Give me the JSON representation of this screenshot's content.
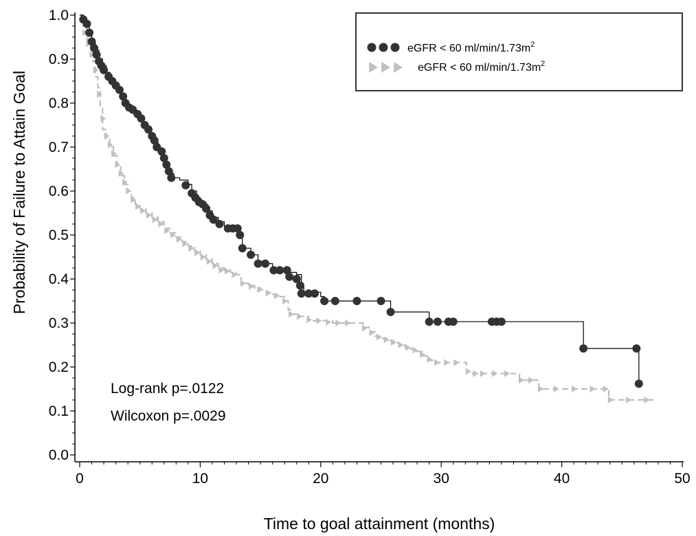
{
  "chart_data": {
    "type": "line",
    "title": "",
    "xlabel": "Time to goal attainment (months)",
    "ylabel": "Probability of  Failure to Attain Goal",
    "xlim": [
      0,
      50
    ],
    "ylim": [
      0,
      1.0
    ],
    "x_ticks": [
      "0",
      "10",
      "20",
      "30",
      "40",
      "50"
    ],
    "y_ticks": [
      "0.0",
      "0.1",
      "0.2",
      "0.3",
      "0.4",
      "0.5",
      "0.6",
      "0.7",
      "0.8",
      "0.9",
      "1.0"
    ],
    "grid": false,
    "legend_position": "top-right",
    "annotations": [
      "Log-rank p=.0122",
      "Wilcoxon p=.0029"
    ],
    "series": [
      {
        "name": "eGFR < 60 ml/min/1.73m",
        "superscript": "2",
        "color": "#333333",
        "marker": "circle",
        "line_style": "solid",
        "points": [
          [
            0,
            1.0
          ],
          [
            0.3,
            0.99
          ],
          [
            0.6,
            0.98
          ],
          [
            0.8,
            0.96
          ],
          [
            1.0,
            0.94
          ],
          [
            1.3,
            0.92
          ],
          [
            1.6,
            0.9
          ],
          [
            1.9,
            0.885
          ],
          [
            2.2,
            0.87
          ],
          [
            2.5,
            0.855
          ],
          [
            2.8,
            0.845
          ],
          [
            3.1,
            0.83
          ],
          [
            3.4,
            0.815
          ],
          [
            3.7,
            0.8
          ],
          [
            4.0,
            0.79
          ],
          [
            4.3,
            0.78
          ],
          [
            4.7,
            0.77
          ],
          [
            5.0,
            0.76
          ],
          [
            5.3,
            0.75
          ],
          [
            5.6,
            0.735
          ],
          [
            5.9,
            0.725
          ],
          [
            6.2,
            0.71
          ],
          [
            6.5,
            0.695
          ],
          [
            6.8,
            0.68
          ],
          [
            7.0,
            0.665
          ],
          [
            7.3,
            0.65
          ],
          [
            7.5,
            0.64
          ],
          [
            7.8,
            0.63
          ],
          [
            8.3,
            0.625
          ],
          [
            9.0,
            0.615
          ],
          [
            9.3,
            0.6
          ],
          [
            9.7,
            0.585
          ],
          [
            10.0,
            0.575
          ],
          [
            10.3,
            0.57
          ],
          [
            10.6,
            0.555
          ],
          [
            11.0,
            0.54
          ],
          [
            11.5,
            0.53
          ],
          [
            12.0,
            0.52
          ],
          [
            12.8,
            0.515
          ],
          [
            13.3,
            0.5
          ],
          [
            13.5,
            0.47
          ],
          [
            14.2,
            0.455
          ],
          [
            14.8,
            0.44
          ],
          [
            15.4,
            0.435
          ],
          [
            16.0,
            0.425
          ],
          [
            16.6,
            0.42
          ],
          [
            17.2,
            0.415
          ],
          [
            18.0,
            0.41
          ],
          [
            18.4,
            0.385
          ],
          [
            18.6,
            0.37
          ],
          [
            19.3,
            0.37
          ],
          [
            20.0,
            0.36
          ],
          [
            20.3,
            0.35
          ],
          [
            21.2,
            0.35
          ],
          [
            22.0,
            0.35
          ],
          [
            23.0,
            0.35
          ],
          [
            25.0,
            0.35
          ],
          [
            25.8,
            0.325
          ],
          [
            28.0,
            0.325
          ],
          [
            29.0,
            0.303
          ],
          [
            30.0,
            0.303
          ],
          [
            31.0,
            0.303
          ],
          [
            34.2,
            0.303
          ],
          [
            35.0,
            0.303
          ],
          [
            41.8,
            0.303
          ],
          [
            41.8,
            0.242
          ],
          [
            46.2,
            0.242
          ],
          [
            46.4,
            0.162
          ]
        ],
        "censor_points": [
          [
            0.3,
            0.99
          ],
          [
            0.6,
            0.98
          ],
          [
            0.8,
            0.96
          ],
          [
            1.0,
            0.94
          ],
          [
            1.2,
            0.925
          ],
          [
            1.4,
            0.91
          ],
          [
            1.6,
            0.895
          ],
          [
            1.8,
            0.885
          ],
          [
            2.0,
            0.875
          ],
          [
            2.4,
            0.86
          ],
          [
            2.7,
            0.85
          ],
          [
            3.0,
            0.84
          ],
          [
            3.3,
            0.83
          ],
          [
            3.6,
            0.815
          ],
          [
            3.8,
            0.8
          ],
          [
            4.1,
            0.79
          ],
          [
            4.4,
            0.785
          ],
          [
            4.8,
            0.775
          ],
          [
            5.1,
            0.765
          ],
          [
            5.4,
            0.75
          ],
          [
            5.7,
            0.74
          ],
          [
            6.0,
            0.725
          ],
          [
            6.2,
            0.715
          ],
          [
            6.4,
            0.7
          ],
          [
            6.8,
            0.69
          ],
          [
            7.0,
            0.675
          ],
          [
            7.2,
            0.66
          ],
          [
            7.4,
            0.645
          ],
          [
            7.6,
            0.63
          ],
          [
            8.8,
            0.613
          ],
          [
            9.3,
            0.595
          ],
          [
            9.6,
            0.585
          ],
          [
            9.9,
            0.575
          ],
          [
            10.2,
            0.57
          ],
          [
            10.5,
            0.56
          ],
          [
            10.8,
            0.545
          ],
          [
            11.1,
            0.535
          ],
          [
            11.6,
            0.525
          ],
          [
            12.3,
            0.515
          ],
          [
            12.7,
            0.515
          ],
          [
            13.1,
            0.515
          ],
          [
            13.3,
            0.5
          ],
          [
            13.5,
            0.47
          ],
          [
            14.2,
            0.455
          ],
          [
            14.8,
            0.435
          ],
          [
            15.4,
            0.435
          ],
          [
            16.1,
            0.42
          ],
          [
            16.6,
            0.42
          ],
          [
            17.2,
            0.42
          ],
          [
            17.4,
            0.405
          ],
          [
            18.0,
            0.4
          ],
          [
            18.3,
            0.385
          ],
          [
            18.4,
            0.367
          ],
          [
            19.0,
            0.367
          ],
          [
            19.5,
            0.367
          ],
          [
            20.3,
            0.35
          ],
          [
            21.2,
            0.35
          ],
          [
            23.0,
            0.35
          ],
          [
            25.0,
            0.35
          ],
          [
            25.8,
            0.325
          ],
          [
            29.0,
            0.303
          ],
          [
            29.7,
            0.303
          ],
          [
            30.6,
            0.303
          ],
          [
            31.0,
            0.303
          ],
          [
            34.2,
            0.303
          ],
          [
            34.6,
            0.303
          ],
          [
            35.0,
            0.303
          ],
          [
            41.8,
            0.242
          ],
          [
            46.2,
            0.242
          ],
          [
            46.4,
            0.162
          ]
        ]
      },
      {
        "name": "eGFR < 60 ml/min/1.73m",
        "superscript": "2",
        "color": "#c0c0c0",
        "marker": "triangle-right",
        "line_style": "dashed",
        "points": [
          [
            0,
            1.0
          ],
          [
            0.3,
            0.97
          ],
          [
            0.6,
            0.94
          ],
          [
            0.9,
            0.92
          ],
          [
            1.1,
            0.895
          ],
          [
            1.3,
            0.86
          ],
          [
            1.5,
            0.835
          ],
          [
            1.7,
            0.79
          ],
          [
            1.9,
            0.74
          ],
          [
            2.2,
            0.72
          ],
          [
            2.5,
            0.7
          ],
          [
            2.8,
            0.68
          ],
          [
            3.1,
            0.655
          ],
          [
            3.4,
            0.635
          ],
          [
            3.7,
            0.615
          ],
          [
            4.0,
            0.6
          ],
          [
            4.3,
            0.585
          ],
          [
            4.6,
            0.57
          ],
          [
            5.0,
            0.56
          ],
          [
            5.5,
            0.55
          ],
          [
            6.0,
            0.54
          ],
          [
            6.5,
            0.53
          ],
          [
            7.0,
            0.515
          ],
          [
            7.5,
            0.505
          ],
          [
            8.0,
            0.495
          ],
          [
            8.5,
            0.485
          ],
          [
            9.0,
            0.475
          ],
          [
            9.5,
            0.465
          ],
          [
            10.0,
            0.455
          ],
          [
            10.5,
            0.445
          ],
          [
            11.0,
            0.435
          ],
          [
            11.5,
            0.425
          ],
          [
            12.0,
            0.42
          ],
          [
            12.5,
            0.415
          ],
          [
            13.0,
            0.41
          ],
          [
            13.4,
            0.39
          ],
          [
            14.0,
            0.385
          ],
          [
            14.5,
            0.38
          ],
          [
            15.0,
            0.375
          ],
          [
            15.5,
            0.37
          ],
          [
            16.0,
            0.365
          ],
          [
            16.5,
            0.36
          ],
          [
            17.0,
            0.35
          ],
          [
            17.3,
            0.33
          ],
          [
            17.5,
            0.32
          ],
          [
            18.0,
            0.315
          ],
          [
            19.0,
            0.305
          ],
          [
            20.0,
            0.305
          ],
          [
            21.0,
            0.3
          ],
          [
            22.0,
            0.3
          ],
          [
            23.0,
            0.3
          ],
          [
            23.5,
            0.29
          ],
          [
            24.0,
            0.28
          ],
          [
            24.5,
            0.27
          ],
          [
            25.0,
            0.265
          ],
          [
            25.5,
            0.26
          ],
          [
            26.0,
            0.255
          ],
          [
            26.5,
            0.25
          ],
          [
            27.0,
            0.245
          ],
          [
            27.5,
            0.24
          ],
          [
            28.0,
            0.235
          ],
          [
            28.5,
            0.225
          ],
          [
            29.0,
            0.215
          ],
          [
            29.5,
            0.21
          ],
          [
            31.0,
            0.21
          ],
          [
            32.0,
            0.21
          ],
          [
            32.1,
            0.19
          ],
          [
            32.5,
            0.185
          ],
          [
            36.4,
            0.185
          ],
          [
            36.5,
            0.17
          ],
          [
            38.0,
            0.17
          ],
          [
            38.1,
            0.15
          ],
          [
            43.8,
            0.15
          ],
          [
            43.9,
            0.125
          ],
          [
            47.6,
            0.125
          ]
        ],
        "censor_points": [
          [
            0.4,
            0.96
          ],
          [
            0.7,
            0.935
          ],
          [
            1.0,
            0.91
          ],
          [
            1.3,
            0.875
          ],
          [
            1.6,
            0.82
          ],
          [
            1.9,
            0.765
          ],
          [
            2.2,
            0.725
          ],
          [
            2.5,
            0.705
          ],
          [
            2.8,
            0.685
          ],
          [
            3.1,
            0.66
          ],
          [
            3.4,
            0.64
          ],
          [
            3.7,
            0.62
          ],
          [
            4.0,
            0.6
          ],
          [
            4.4,
            0.58
          ],
          [
            4.8,
            0.565
          ],
          [
            5.2,
            0.555
          ],
          [
            5.7,
            0.545
          ],
          [
            6.2,
            0.535
          ],
          [
            6.7,
            0.525
          ],
          [
            7.2,
            0.51
          ],
          [
            7.7,
            0.5
          ],
          [
            8.2,
            0.49
          ],
          [
            8.7,
            0.48
          ],
          [
            9.2,
            0.47
          ],
          [
            9.7,
            0.46
          ],
          [
            10.2,
            0.45
          ],
          [
            10.7,
            0.44
          ],
          [
            11.2,
            0.43
          ],
          [
            11.7,
            0.42
          ],
          [
            12.2,
            0.418
          ],
          [
            12.8,
            0.41
          ],
          [
            13.5,
            0.39
          ],
          [
            14.2,
            0.383
          ],
          [
            14.9,
            0.376
          ],
          [
            15.6,
            0.368
          ],
          [
            16.3,
            0.362
          ],
          [
            17.0,
            0.35
          ],
          [
            17.5,
            0.32
          ],
          [
            18.2,
            0.315
          ],
          [
            19.0,
            0.307
          ],
          [
            19.8,
            0.305
          ],
          [
            20.6,
            0.302
          ],
          [
            21.4,
            0.3
          ],
          [
            22.2,
            0.3
          ],
          [
            23.6,
            0.288
          ],
          [
            24.2,
            0.278
          ],
          [
            24.8,
            0.268
          ],
          [
            25.4,
            0.262
          ],
          [
            26.0,
            0.256
          ],
          [
            26.6,
            0.25
          ],
          [
            27.2,
            0.244
          ],
          [
            27.8,
            0.238
          ],
          [
            28.4,
            0.228
          ],
          [
            29.0,
            0.217
          ],
          [
            29.6,
            0.21
          ],
          [
            30.4,
            0.21
          ],
          [
            31.2,
            0.21
          ],
          [
            32.2,
            0.19
          ],
          [
            32.8,
            0.185
          ],
          [
            33.4,
            0.185
          ],
          [
            34.4,
            0.185
          ],
          [
            35.4,
            0.185
          ],
          [
            36.6,
            0.17
          ],
          [
            37.4,
            0.17
          ],
          [
            38.2,
            0.15
          ],
          [
            39.5,
            0.15
          ],
          [
            41.0,
            0.15
          ],
          [
            42.5,
            0.15
          ],
          [
            43.6,
            0.15
          ],
          [
            44.0,
            0.125
          ],
          [
            45.5,
            0.125
          ],
          [
            47.0,
            0.125
          ]
        ]
      }
    ]
  }
}
